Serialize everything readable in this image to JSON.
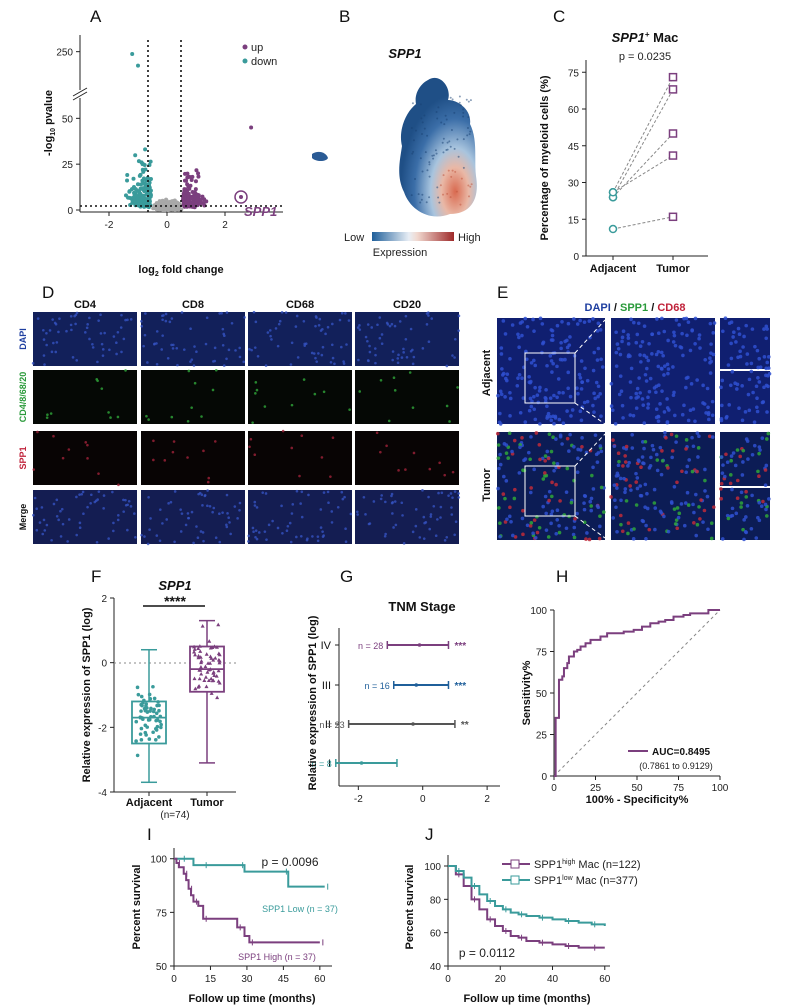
{
  "colors": {
    "up": "#7b3f7e",
    "down": "#3a9b9b",
    "ns": "#a8a8a8",
    "teal": "#3a9b9b",
    "purple": "#7b3f7e",
    "blue": "#1f5f9a",
    "gray": "#555555"
  },
  "panels": {
    "A": "A",
    "B": "B",
    "C": "C",
    "D": "D",
    "E": "E",
    "F": "F",
    "G": "G",
    "H": "H",
    "I": "I",
    "J": "J"
  },
  "chart_data": [
    {
      "id": "A",
      "type": "scatter",
      "legend": [
        "up",
        "down"
      ],
      "xlabel": "log2 fold change",
      "ylabel": "-log10 pvalue",
      "xlim": [
        -3,
        4
      ],
      "ylim_lower": [
        0,
        60
      ],
      "ylim_upper": [
        240,
        255
      ],
      "xticks": [
        "-2",
        "0",
        "2"
      ],
      "yticks": [
        "0",
        "25",
        "50",
        "250"
      ],
      "annotation": "SPP1",
      "highlight": {
        "x": 2.7,
        "y": 20
      },
      "thresholds": {
        "x": [
          -0.5,
          0.5
        ],
        "y": 1.3
      }
    },
    {
      "id": "B",
      "type": "heatmap",
      "title": "SPP1",
      "colorbar_low": "Low",
      "colorbar_high": "High",
      "colorbar_label": "Expression"
    },
    {
      "id": "C",
      "type": "line",
      "title_italic": "SPP1",
      "title_sup": "+",
      "title_rest": " Mac",
      "pvalue": "p = 0.0235",
      "categories": [
        "Adjacent",
        "Tumor"
      ],
      "ylabel": "Percentage of myeloid cells (%)",
      "ylim": [
        0,
        80
      ],
      "yticks": [
        "0",
        "15",
        "30",
        "45",
        "60",
        "75"
      ],
      "pairs": [
        [
          24,
          68
        ],
        [
          26,
          73
        ],
        [
          24,
          50
        ],
        [
          26,
          41
        ],
        [
          11,
          16
        ]
      ]
    },
    {
      "id": "F",
      "type": "bar",
      "title": "SPP1",
      "significance": "****",
      "categories": [
        "Adjacent",
        "Tumor"
      ],
      "n_label": "(n=74)",
      "ylabel": "Relative expression of SPP1 (log)",
      "ylim": [
        -4,
        2
      ],
      "yticks": [
        "-4",
        "-2",
        "0",
        "2"
      ],
      "boxes": [
        {
          "name": "Adjacent",
          "min": -3.7,
          "q1": -2.5,
          "median": -1.7,
          "q3": -1.2,
          "max": 0.4
        },
        {
          "name": "Tumor",
          "min": -3.1,
          "q1": -0.9,
          "median": -0.2,
          "q3": 0.5,
          "max": 1.3
        }
      ]
    },
    {
      "id": "G",
      "type": "scatter",
      "title": "TNM Stage",
      "ylabel": "Relative expression of SPP1 (log)",
      "xlim": [
        -2.6,
        2.4
      ],
      "xticks": [
        "-2",
        "0",
        "2"
      ],
      "rows": [
        {
          "stage": "IV",
          "n": "n = 28",
          "sig": "***",
          "mean": -0.1,
          "lo": -1.1,
          "hi": 0.8
        },
        {
          "stage": "III",
          "n": "n = 16",
          "sig": "***",
          "mean": -0.2,
          "lo": -0.9,
          "hi": 0.8
        },
        {
          "stage": "II",
          "n": "n = 23",
          "sig": "**",
          "mean": -0.3,
          "lo": -2.3,
          "hi": 1.0
        },
        {
          "stage": "I",
          "n": "n = 8",
          "sig": "",
          "mean": -1.9,
          "lo": -2.7,
          "hi": -0.8
        }
      ]
    },
    {
      "id": "H",
      "type": "line",
      "auc": "AUC=0.8495",
      "ci": "(0.7861 to 0.9129)",
      "xlabel": "100% - Specificity%",
      "ylabel": "Sensitivity%",
      "xlim": [
        0,
        100
      ],
      "ylim": [
        0,
        100
      ],
      "xticks": [
        "0",
        "25",
        "50",
        "75",
        "100"
      ],
      "yticks": [
        "0",
        "25",
        "50",
        "75",
        "100"
      ],
      "x": [
        0,
        1,
        1,
        2,
        3,
        3,
        5,
        6,
        8,
        9,
        12,
        14,
        16,
        19,
        22,
        28,
        32,
        37,
        42,
        48,
        53,
        58,
        63,
        67,
        72,
        78,
        82,
        87,
        93,
        100
      ],
      "y": [
        0,
        0,
        35,
        35,
        55,
        58,
        60,
        65,
        68,
        72,
        75,
        76,
        78,
        80,
        82,
        84,
        86,
        86,
        87,
        88,
        90,
        92,
        93,
        94,
        96,
        97,
        98,
        98,
        100,
        100
      ]
    },
    {
      "id": "I",
      "type": "line",
      "pvalue": "p = 0.0096",
      "xlabel": "Follow up time (months)",
      "ylabel": "Percent survival",
      "xlim": [
        0,
        65
      ],
      "ylim": [
        50,
        105
      ],
      "xticks": [
        "0",
        "15",
        "30",
        "45",
        "60"
      ],
      "yticks": [
        "50",
        "75",
        "100"
      ],
      "series": [
        {
          "name": "SPP1 Low (n = 37)",
          "x": [
            0,
            3,
            8,
            12,
            20,
            27,
            29,
            45,
            47,
            62
          ],
          "y": [
            100,
            100,
            97,
            97,
            97,
            97,
            94,
            94,
            87,
            87
          ]
        },
        {
          "name": "SPP1 High (n = 37)",
          "x": [
            0,
            1,
            2,
            4,
            5,
            6,
            7,
            8,
            10,
            12,
            18,
            26,
            29,
            31,
            37,
            60
          ],
          "y": [
            100,
            98,
            96,
            93,
            90,
            86,
            83,
            80,
            78,
            72,
            72,
            68,
            64,
            61,
            61,
            61
          ]
        }
      ]
    },
    {
      "id": "J",
      "type": "line",
      "pvalue": "p = 0.0112",
      "xlabel": "Follow up time (months)",
      "ylabel": "Percent survival",
      "xlim": [
        0,
        62
      ],
      "ylim": [
        40,
        100
      ],
      "xticks": [
        "0",
        "20",
        "40",
        "60"
      ],
      "yticks": [
        "40",
        "60",
        "80",
        "100"
      ],
      "series": [
        {
          "name": "SPP1high Mac (n=122)",
          "label_parts": [
            "SPP1",
            "high",
            " Mac (n=122)"
          ],
          "x": [
            0,
            3,
            6,
            9,
            12,
            15,
            18,
            21,
            24,
            27,
            30,
            35,
            40,
            45,
            50,
            55,
            60
          ],
          "y": [
            100,
            95,
            88,
            80,
            74,
            68,
            64,
            61,
            58,
            57,
            55,
            54,
            53,
            52,
            51,
            51,
            51
          ]
        },
        {
          "name": "SPP1low Mac (n=377)",
          "label_parts": [
            "SPP1",
            "low",
            " Mac (n=377)"
          ],
          "x": [
            0,
            3,
            6,
            9,
            12,
            15,
            18,
            21,
            24,
            27,
            30,
            35,
            40,
            45,
            50,
            55,
            60
          ],
          "y": [
            100,
            97,
            93,
            88,
            83,
            79,
            76,
            74,
            72,
            71,
            70,
            69,
            68,
            67,
            66,
            65,
            64
          ]
        }
      ]
    }
  ],
  "panelD": {
    "columns": [
      "CD4",
      "CD8",
      "CD68",
      "CD20"
    ],
    "rows": [
      "DAPI",
      "CD4/8/68/20",
      "SPP1",
      "Merge"
    ]
  },
  "panelE": {
    "title_parts": [
      "DAPI",
      " / ",
      "SPP1",
      " / ",
      "CD68"
    ],
    "rows": [
      "Adjacent",
      "Tumor"
    ]
  }
}
